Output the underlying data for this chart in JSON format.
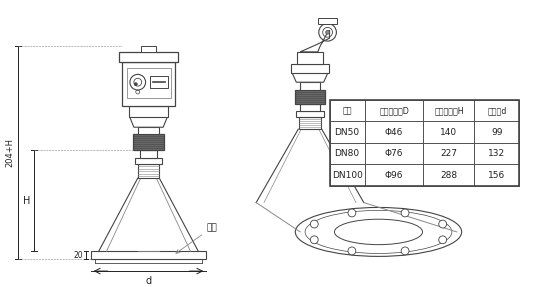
{
  "bg_color": "#ffffff",
  "line_color": "#444444",
  "dark_color": "#222222",
  "gray_color": "#888888",
  "table_header": [
    "法兰",
    "喇叭口直径D",
    "喇叭口高度H",
    "四螺盘d"
  ],
  "table_rows": [
    [
      "DN50",
      "Φ46",
      "140",
      "99"
    ],
    [
      "DN80",
      "Φ76",
      "227",
      "132"
    ],
    [
      "DN100",
      "Φ96",
      "288",
      "156"
    ]
  ],
  "dim_label_204H": "204+H",
  "dim_label_H": "H",
  "dim_label_20": "20",
  "dim_label_d": "d",
  "dim_label_falan": "法兰"
}
